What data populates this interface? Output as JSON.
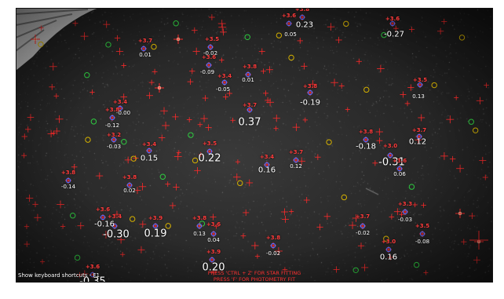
{
  "hint": {
    "shortcuts": "Show keyboard shortcuts - F1"
  },
  "instructions": {
    "line1": "PRESS 'CTRL + Z' FOR STAR FITTING",
    "line2": "PRESS 'F' FOR PHOTOMETRY FIT"
  },
  "colors": {
    "catalog_marker": "#ff2a2a",
    "fit_marker": "#5a6cff",
    "candidate_green": "#2ecc40",
    "candidate_yellow": "#d4b000",
    "magnitude_text": "#ff3b3b",
    "residual_text": "#ffffff"
  },
  "stars": [
    {
      "mag": "+3.8",
      "res": "0.23",
      "size": "m"
    },
    {
      "mag": "+3.6",
      "res": "0.05",
      "size": "s"
    },
    {
      "mag": "+3.6",
      "res": "-0.27",
      "size": "m"
    },
    {
      "mag": "+3.7",
      "res": "0.01",
      "size": "s"
    },
    {
      "mag": "+3.5",
      "res": "-0.02",
      "size": "s"
    },
    {
      "mag": "+3.6",
      "res": "-0.09",
      "size": "s"
    },
    {
      "mag": "+3.8",
      "res": "0.01",
      "size": "s"
    },
    {
      "mag": "+3.4",
      "res": "-0.05",
      "size": "s"
    },
    {
      "mag": "+3.8",
      "res": "-0.19",
      "size": "m"
    },
    {
      "mag": "+3.5",
      "res": "0.13",
      "size": "s"
    },
    {
      "mag": "+3.4",
      "res": "-0.00",
      "size": "s"
    },
    {
      "mag": "+3.8",
      "res": "-0.12",
      "size": "s"
    },
    {
      "mag": "+3.7",
      "res": "0.37",
      "size": "l"
    },
    {
      "mag": "+3.2",
      "res": "-0.03",
      "size": "s"
    },
    {
      "mag": "+3.8",
      "res": "-0.18",
      "size": "m"
    },
    {
      "mag": "+3.7",
      "res": "0.12",
      "size": "m"
    },
    {
      "mag": "+3.4",
      "res": "0.15",
      "size": "m"
    },
    {
      "mag": "+3.5",
      "res": "0.22",
      "size": "l"
    },
    {
      "mag": "+3.4",
      "res": "0.16",
      "size": "m"
    },
    {
      "mag": "+3.7",
      "res": "0.12",
      "size": "s"
    },
    {
      "mag": "+3.0",
      "res": "-0.31",
      "size": "l"
    },
    {
      "mag": "+3.6",
      "res": "0.06",
      "size": "s"
    },
    {
      "mag": "+3.8",
      "res": "-0.14",
      "size": "s"
    },
    {
      "mag": "+3.8",
      "res": "0.02",
      "size": "s"
    },
    {
      "mag": "+3.6",
      "res": "-0.16",
      "size": "m"
    },
    {
      "mag": "+3.4",
      "res": "-0.30",
      "size": "l"
    },
    {
      "mag": "+3.9",
      "res": "0.19",
      "size": "l"
    },
    {
      "mag": "+3.8",
      "res": "0.13",
      "size": "s"
    },
    {
      "mag": "+3.6",
      "res": "0.04",
      "size": "s"
    },
    {
      "mag": "+3.8",
      "res": "-0.02",
      "size": "s"
    },
    {
      "mag": "+3.7",
      "res": "-0.02",
      "size": "s"
    },
    {
      "mag": "+3.3",
      "res": "-0.03",
      "size": "s"
    },
    {
      "mag": "+3.5",
      "res": "-0.08",
      "size": "s"
    },
    {
      "mag": "+3.0",
      "res": "0.16",
      "size": "m"
    },
    {
      "mag": "+3.9",
      "res": "0.20",
      "size": "l"
    },
    {
      "mag": "+3.6",
      "res": "-0.35",
      "size": "l"
    }
  ]
}
